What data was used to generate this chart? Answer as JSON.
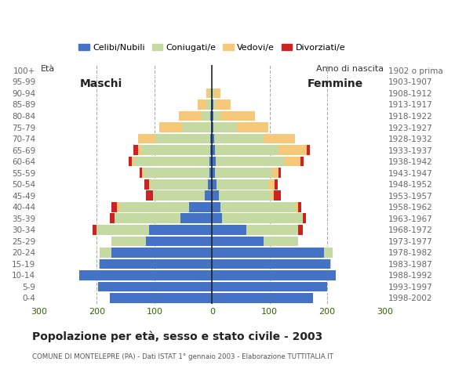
{
  "age_groups": [
    "0-4",
    "5-9",
    "10-14",
    "15-19",
    "20-24",
    "25-29",
    "30-34",
    "35-39",
    "40-44",
    "45-49",
    "50-54",
    "55-59",
    "60-64",
    "65-69",
    "70-74",
    "75-79",
    "80-84",
    "85-89",
    "90-94",
    "95-99",
    "100+"
  ],
  "birth_years": [
    "1998-2002",
    "1993-1997",
    "1988-1992",
    "1983-1987",
    "1978-1982",
    "1973-1977",
    "1968-1972",
    "1963-1967",
    "1958-1962",
    "1953-1957",
    "1948-1952",
    "1943-1947",
    "1938-1942",
    "1933-1937",
    "1928-1932",
    "1923-1927",
    "1918-1922",
    "1913-1917",
    "1908-1912",
    "1903-1907",
    "1902 o prima"
  ],
  "males": {
    "celibi": [
      178,
      198,
      230,
      195,
      175,
      115,
      110,
      55,
      40,
      13,
      7,
      4,
      5,
      3,
      3,
      2,
      3,
      2,
      1,
      0,
      0
    ],
    "coniugati": [
      0,
      0,
      0,
      2,
      20,
      60,
      90,
      115,
      120,
      90,
      100,
      115,
      130,
      120,
      95,
      50,
      15,
      8,
      4,
      0,
      0
    ],
    "vedovi": [
      0,
      0,
      0,
      0,
      0,
      0,
      0,
      0,
      5,
      0,
      3,
      3,
      5,
      5,
      30,
      40,
      40,
      15,
      5,
      0,
      0
    ],
    "divorziati": [
      0,
      0,
      0,
      0,
      0,
      0,
      8,
      8,
      10,
      12,
      7,
      4,
      5,
      8,
      0,
      0,
      0,
      0,
      0,
      0,
      0
    ]
  },
  "females": {
    "nubili": [
      175,
      200,
      215,
      205,
      195,
      90,
      60,
      18,
      15,
      12,
      8,
      5,
      6,
      5,
      4,
      3,
      3,
      2,
      1,
      0,
      0
    ],
    "coniugate": [
      0,
      0,
      0,
      2,
      15,
      60,
      90,
      140,
      130,
      90,
      90,
      100,
      120,
      110,
      85,
      40,
      12,
      5,
      3,
      0,
      0
    ],
    "vedove": [
      0,
      0,
      0,
      0,
      0,
      0,
      0,
      0,
      5,
      5,
      10,
      10,
      28,
      50,
      55,
      55,
      60,
      25,
      10,
      0,
      0
    ],
    "divorziate": [
      0,
      0,
      0,
      0,
      0,
      0,
      8,
      5,
      5,
      12,
      6,
      4,
      5,
      5,
      0,
      0,
      0,
      0,
      0,
      0,
      0
    ]
  },
  "colors": {
    "celibi_nubili": "#4472c4",
    "coniugati": "#c5d9a3",
    "vedovi": "#f5c87a",
    "divorziati": "#cc2222"
  },
  "xlim": 300,
  "title": "Popolazione per età, sesso e stato civile - 2003",
  "subtitle": "COMUNE DI MONTELEPRE (PA) - Dati ISTAT 1° gennaio 2003 - Elaborazione TUTTITALIA.IT",
  "ylabel_left": "Età",
  "ylabel_right": "Anno di nascita",
  "label_maschi": "Maschi",
  "label_femmine": "Femmine",
  "legend_labels": [
    "Celibi/Nubili",
    "Coniugati/e",
    "Vedovi/e",
    "Divorziati/e"
  ],
  "background_color": "#ffffff",
  "grid_color": "#aaaaaa",
  "tick_color_x": "#336600",
  "tick_color_y": "#666666"
}
